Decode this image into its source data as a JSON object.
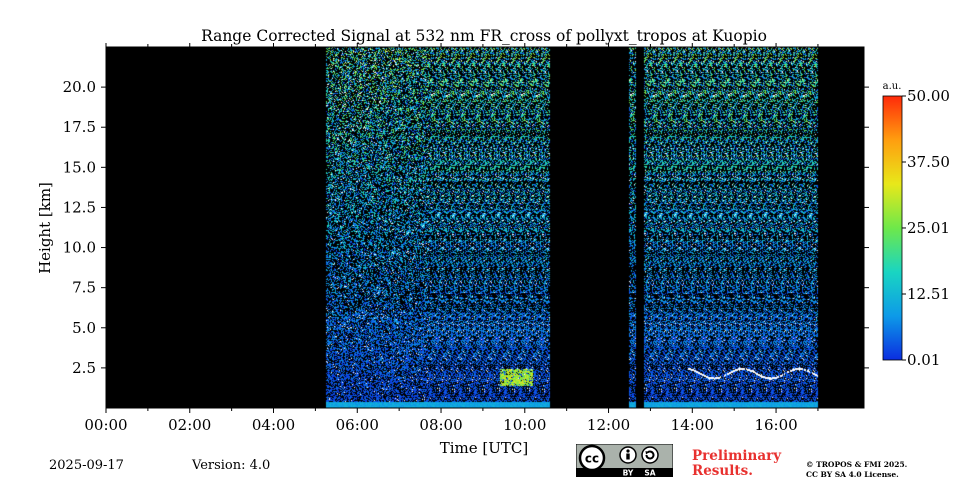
{
  "chart_data": {
    "type": "heatmap",
    "title": "Range Corrected Signal at 532 nm FR_cross of pollyxt_tropos at Kuopio",
    "xlabel": "Time [UTC]",
    "ylabel": "Height [km]",
    "xlim_hours": [
      0,
      18.1
    ],
    "ylim_km": [
      0,
      22.5
    ],
    "x_tick_hours": [
      0,
      2,
      4,
      6,
      8,
      10,
      12,
      14,
      16
    ],
    "x_tick_labels": [
      "00:00",
      "02:00",
      "04:00",
      "06:00",
      "08:00",
      "10:00",
      "12:00",
      "14:00",
      "16:00"
    ],
    "y_ticks": [
      2.5,
      5.0,
      7.5,
      10.0,
      12.5,
      15.0,
      17.5,
      20.0
    ],
    "y_tick_labels": [
      "2.5",
      "5.0",
      "7.5",
      "10.0",
      "12.5",
      "15.0",
      "17.5",
      "20.0"
    ],
    "background_color": "#000000",
    "data_segments_hours": [
      [
        5.25,
        10.6
      ],
      [
        12.5,
        12.65
      ],
      [
        12.85,
        17.0
      ]
    ],
    "aerosol_layer": {
      "time_hours": [
        9.4,
        10.2
      ],
      "height_km": [
        1.4,
        2.4
      ]
    },
    "cloud_layer": {
      "time_hours": [
        13.9,
        17.0
      ],
      "height_km": [
        1.9,
        2.5
      ]
    },
    "colorbar": {
      "unit": "a.u.",
      "min": 0.01,
      "max": 50.0,
      "ticks": [
        0.01,
        12.51,
        25.01,
        37.5,
        50.0
      ],
      "tick_labels": [
        "0.01",
        "12.51",
        "25.01",
        "37.50",
        "50.00"
      ],
      "colors": [
        "#0b2de0",
        "#0d9ae8",
        "#19d5c2",
        "#6ee84a",
        "#e8e81a",
        "#ff9e0f",
        "#ff2a0a"
      ]
    }
  },
  "footer": {
    "date": "2025-09-17",
    "version": "Version: 4.0",
    "preliminary_line1": "Preliminary",
    "preliminary_line2": "Results.",
    "copyright_line1": "© TROPOS & FMI 2025.",
    "copyright_line2": "CC BY SA 4.0 License.",
    "license_badge": {
      "cc": "cc",
      "by": "BY",
      "sa": "SA"
    }
  }
}
